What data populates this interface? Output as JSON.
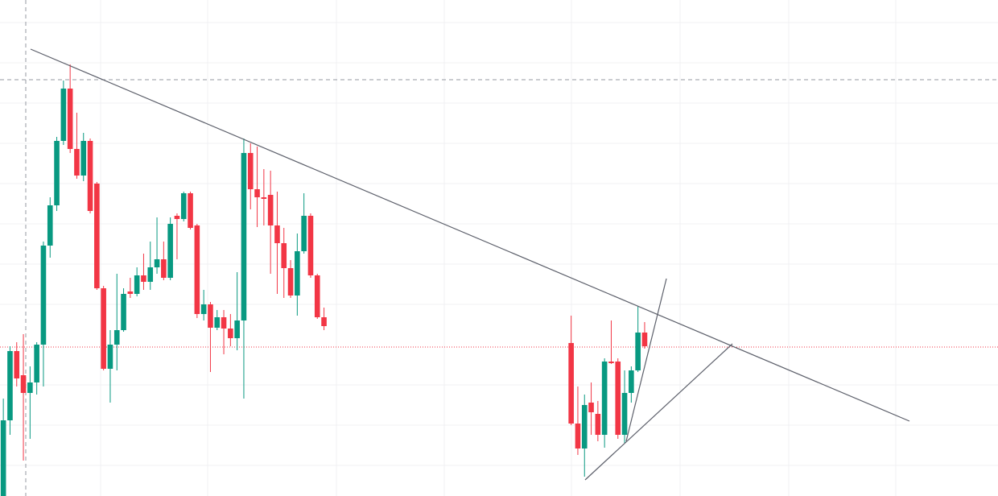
{
  "chart_data": {
    "type": "candlestick",
    "categories": [
      null,
      null,
      null,
      null,
      null,
      null,
      null,
      null,
      null,
      null,
      null,
      null,
      null,
      null,
      null,
      null,
      null,
      null,
      null,
      null,
      null,
      null,
      null,
      null,
      null,
      null,
      null,
      null,
      null,
      null,
      null,
      null,
      null,
      null,
      null,
      null,
      null,
      null,
      null,
      null,
      null,
      null,
      null,
      null,
      null,
      null,
      null,
      null,
      null,
      null,
      null,
      null,
      null,
      null,
      null,
      null,
      null,
      null,
      null,
      null,
      null,
      null,
      null,
      null,
      null,
      null,
      null,
      null,
      null,
      null,
      null,
      null,
      null,
      null,
      null,
      null,
      null,
      null,
      null,
      null,
      null,
      null,
      null,
      null,
      null,
      null,
      null,
      null,
      null,
      null,
      null,
      null,
      null,
      null,
      null,
      null,
      null
    ],
    "open": [
      0,
      94,
      180,
      150,
      128,
      141,
      188,
      311,
      361,
      441,
      506,
      431,
      398,
      441,
      388,
      258,
      158,
      188,
      206,
      254,
      251,
      274,
      266,
      284,
      294,
      271,
      348,
      344,
      376,
      336,
      226,
      238,
      209,
      222,
      208,
      196,
      218,
      426,
      381,
      371,
      374,
      336,
      314,
      283,
      249,
      304,
      348,
      274,
      222,
      null,
      null,
      null,
      null,
      null,
      null,
      null,
      null,
      null,
      null,
      null,
      null,
      null,
      null,
      null,
      null,
      null,
      null,
      null,
      null,
      null,
      null,
      null,
      null,
      null,
      null,
      null,
      null,
      null,
      null,
      null,
      null,
      null,
      null,
      null,
      null,
      190,
      90,
      59,
      116,
      102,
      76,
      167,
      167,
      76,
      128,
      156,
      203
    ],
    "high": [
      121,
      186,
      191,
      201,
      161,
      191,
      316,
      371,
      446,
      516,
      536,
      476,
      451,
      444,
      390,
      261,
      206,
      276,
      258,
      271,
      284,
      301,
      316,
      346,
      316,
      346,
      351,
      378,
      378,
      338,
      256,
      241,
      231,
      231,
      226,
      278,
      444,
      438,
      434,
      406,
      404,
      378,
      333,
      293,
      326,
      376,
      351,
      276,
      234,
      null,
      null,
      null,
      null,
      null,
      null,
      null,
      null,
      null,
      null,
      null,
      null,
      null,
      null,
      null,
      null,
      null,
      null,
      null,
      null,
      null,
      null,
      null,
      null,
      null,
      null,
      null,
      null,
      null,
      null,
      null,
      null,
      null,
      null,
      null,
      null,
      224,
      136,
      126,
      141,
      118,
      171,
      218,
      171,
      156,
      161,
      236,
      216
    ],
    "low": [
      0,
      76,
      136,
      44,
      71,
      126,
      136,
      296,
      354,
      436,
      426,
      394,
      391,
      351,
      256,
      156,
      116,
      156,
      204,
      246,
      248,
      256,
      256,
      276,
      268,
      268,
      294,
      341,
      331,
      221,
      218,
      154,
      206,
      176,
      186,
      181,
      121,
      356,
      334,
      336,
      276,
      251,
      246,
      246,
      224,
      301,
      271,
      220,
      206,
      null,
      null,
      null,
      null,
      null,
      null,
      null,
      null,
      null,
      null,
      null,
      null,
      null,
      null,
      null,
      null,
      null,
      null,
      null,
      null,
      null,
      null,
      null,
      null,
      null,
      null,
      null,
      null,
      null,
      null,
      null,
      null,
      null,
      null,
      null,
      null,
      88,
      51,
      24,
      76,
      68,
      60,
      164,
      71,
      66,
      116,
      154,
      183
    ],
    "close": [
      94,
      180,
      146,
      128,
      141,
      188,
      311,
      361,
      441,
      506,
      431,
      398,
      441,
      354,
      258,
      158,
      188,
      206,
      251,
      251,
      274,
      266,
      284,
      294,
      271,
      338,
      344,
      376,
      333,
      226,
      238,
      209,
      222,
      208,
      196,
      218,
      426,
      381,
      371,
      369,
      336,
      314,
      283,
      249,
      304,
      348,
      274,
      222,
      211,
      null,
      null,
      null,
      null,
      null,
      null,
      null,
      null,
      null,
      null,
      null,
      null,
      null,
      null,
      null,
      null,
      null,
      null,
      null,
      null,
      null,
      null,
      null,
      null,
      null,
      null,
      null,
      null,
      null,
      null,
      null,
      null,
      null,
      null,
      null,
      null,
      90,
      59,
      113,
      104,
      76,
      167,
      165,
      76,
      128,
      156,
      203,
      186
    ],
    "up_color": "#089981",
    "down_color": "#f23645",
    "ylim": [
      0,
      616
    ]
  }
}
